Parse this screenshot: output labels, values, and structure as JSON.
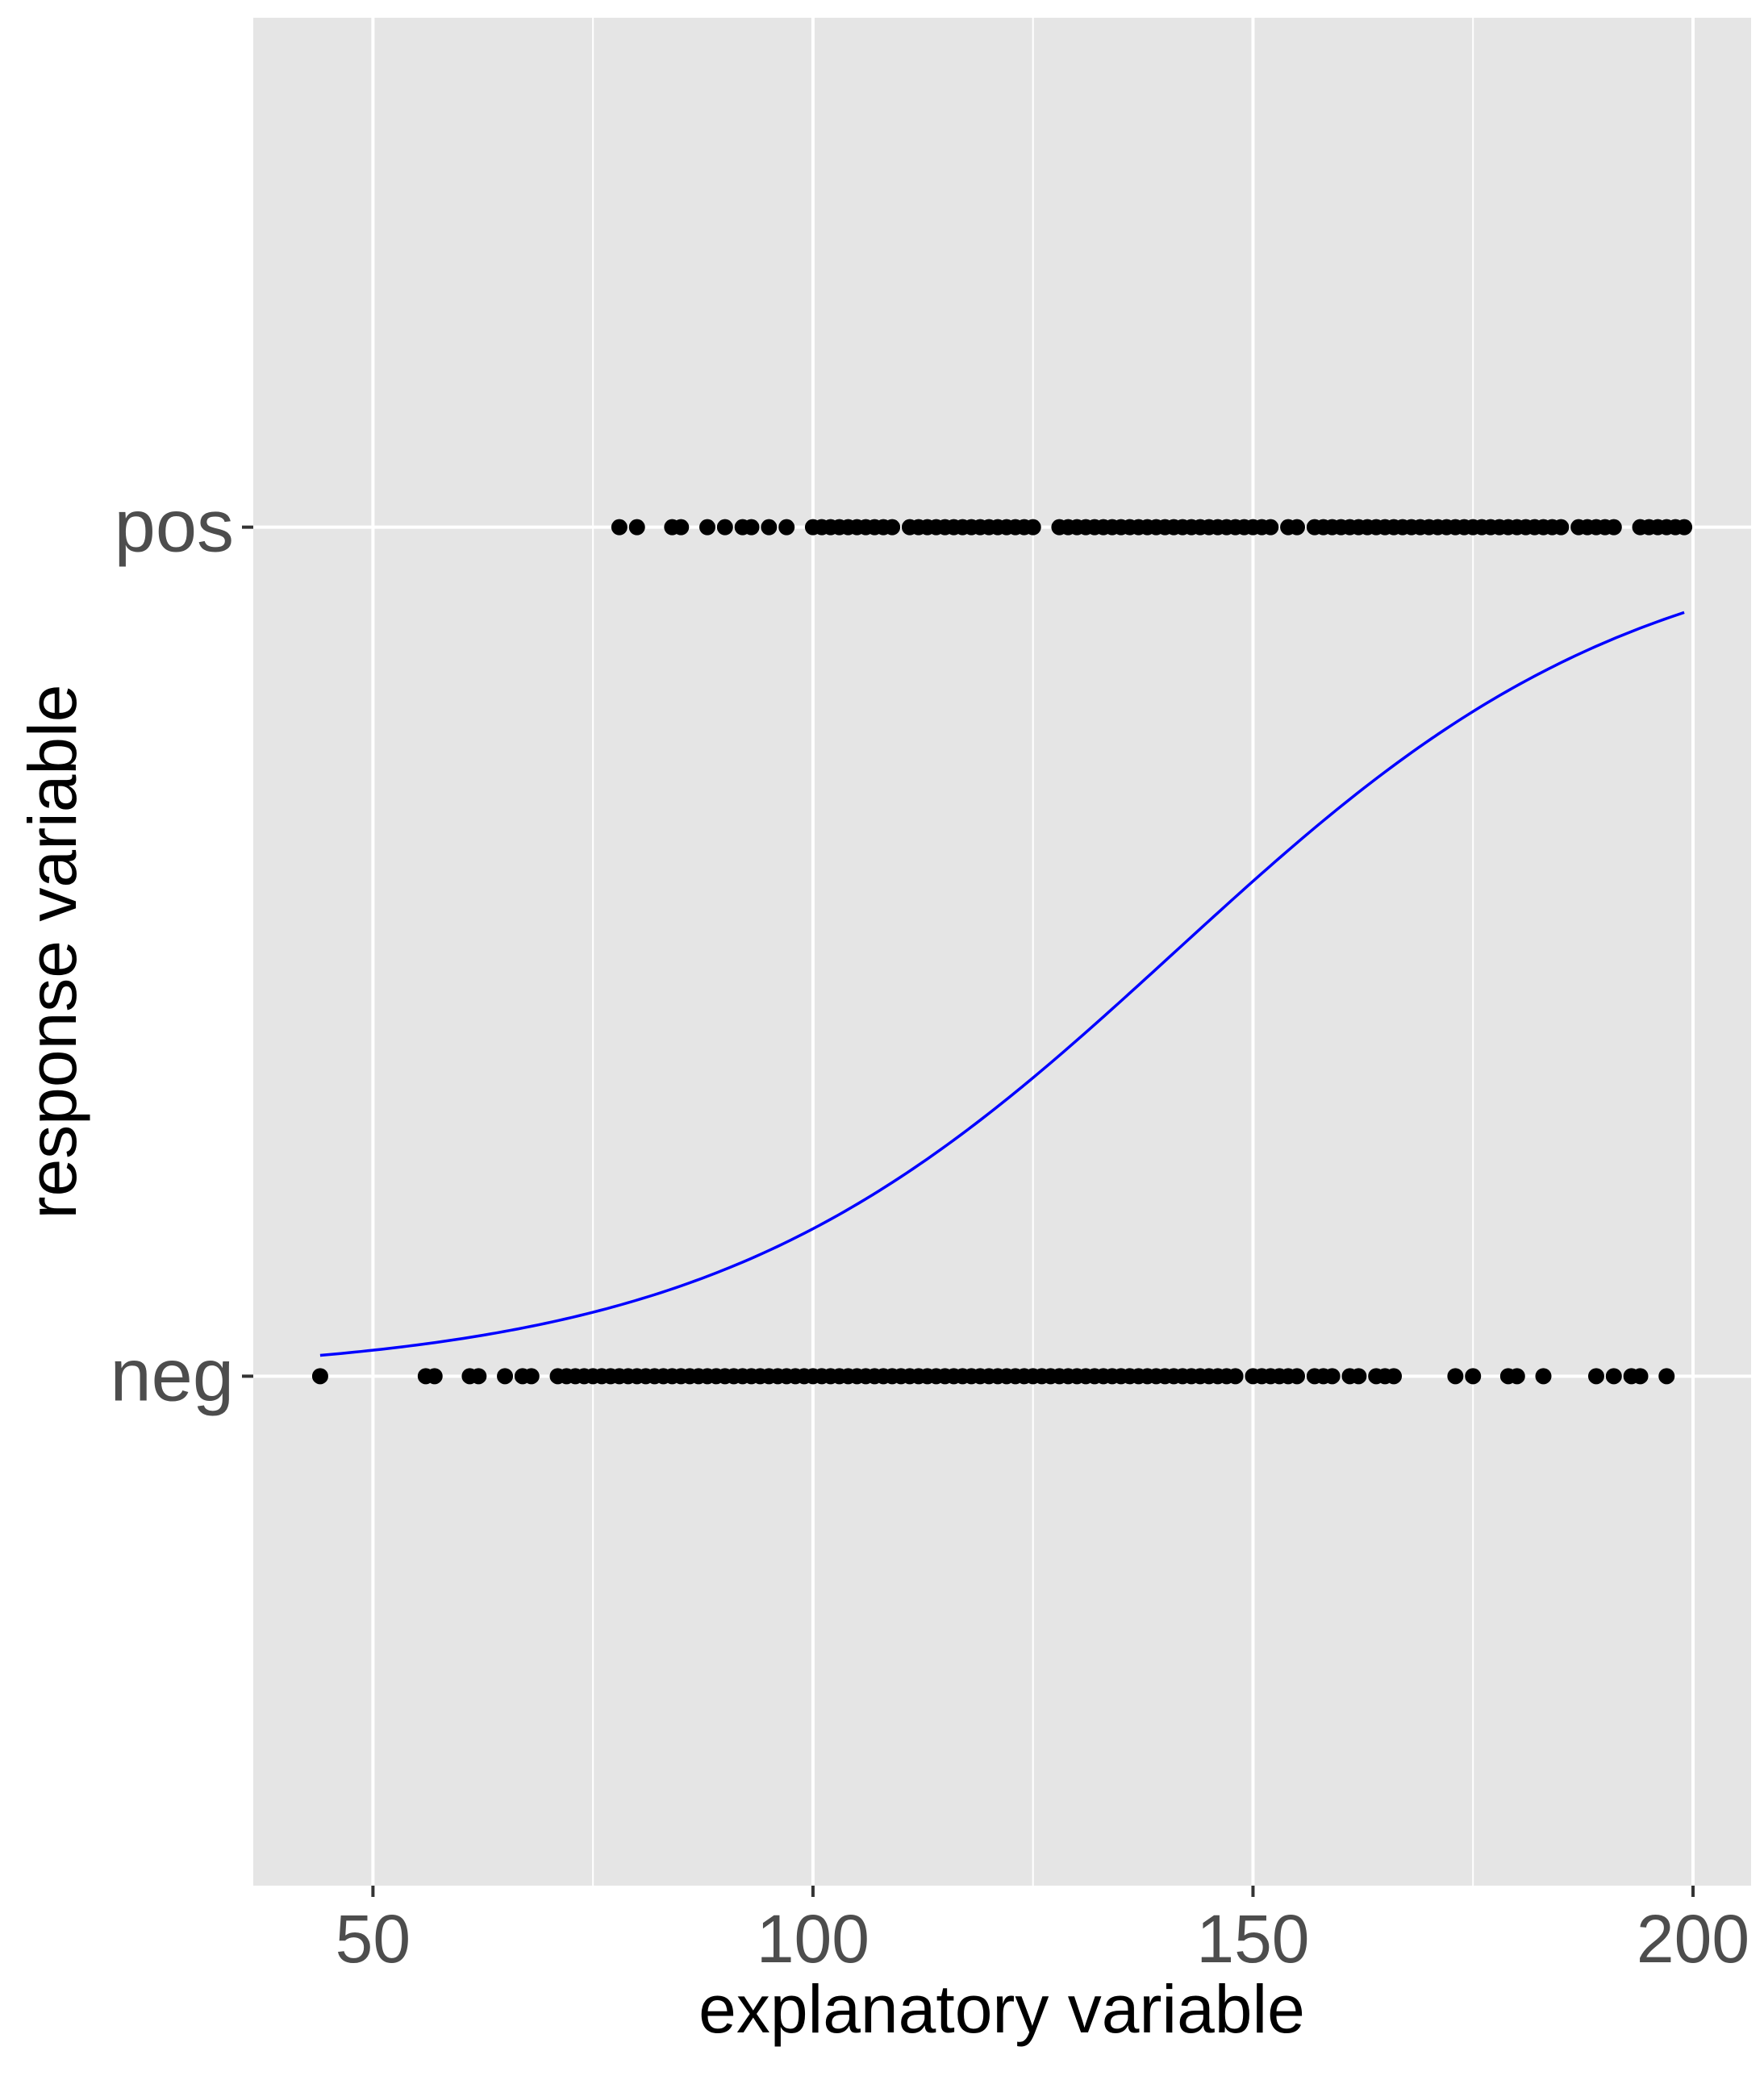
{
  "chart_data": {
    "type": "scatter",
    "title": "",
    "xlabel": "explanatory variable",
    "ylabel": "response variable",
    "xlim": [
      36.4,
      206.6
    ],
    "ylim": [
      -0.6,
      1.6
    ],
    "x_ticks": [
      50,
      100,
      150,
      200
    ],
    "x_minor_ticks": [
      75,
      125,
      175
    ],
    "y_categories": [
      "neg",
      "pos"
    ],
    "grid": true,
    "panel_background": "#e5e5e5",
    "grid_color": "#ffffff",
    "point_color": "#000000",
    "line_color": "#0000ff",
    "series": [
      {
        "kind": "points",
        "category": "pos",
        "x": [
          78,
          80,
          84,
          85,
          88,
          90,
          92,
          93,
          95,
          97,
          100,
          101,
          102,
          103,
          104,
          105,
          106,
          107,
          108,
          109,
          111,
          112,
          113,
          114,
          115,
          116,
          117,
          118,
          119,
          120,
          121,
          122,
          123,
          124,
          125,
          128,
          129,
          130,
          131,
          132,
          133,
          134,
          135,
          136,
          137,
          138,
          139,
          140,
          141,
          142,
          143,
          144,
          145,
          146,
          147,
          148,
          149,
          150,
          151,
          152,
          154,
          155,
          157,
          158,
          159,
          160,
          161,
          162,
          163,
          164,
          165,
          166,
          167,
          168,
          169,
          170,
          171,
          172,
          173,
          174,
          175,
          176,
          177,
          178,
          179,
          180,
          181,
          182,
          183,
          184,
          185,
          187,
          188,
          189,
          190,
          191,
          194,
          195,
          196,
          197,
          198,
          199
        ]
      },
      {
        "kind": "points",
        "category": "neg",
        "x": [
          44,
          56,
          57,
          61,
          62,
          65,
          67,
          68,
          71,
          72,
          73,
          74,
          75,
          76,
          77,
          78,
          79,
          80,
          81,
          82,
          83,
          84,
          85,
          86,
          87,
          88,
          89,
          90,
          91,
          92,
          93,
          94,
          95,
          96,
          97,
          98,
          99,
          100,
          101,
          102,
          103,
          104,
          105,
          106,
          107,
          108,
          109,
          110,
          111,
          112,
          113,
          114,
          115,
          116,
          117,
          118,
          119,
          120,
          121,
          122,
          123,
          124,
          125,
          126,
          127,
          128,
          129,
          130,
          131,
          132,
          133,
          134,
          135,
          136,
          137,
          138,
          139,
          140,
          141,
          142,
          143,
          144,
          145,
          146,
          147,
          148,
          150,
          151,
          152,
          153,
          154,
          155,
          157,
          158,
          159,
          161,
          162,
          164,
          165,
          166,
          173,
          175,
          179,
          180,
          183,
          189,
          191,
          193,
          194,
          197
        ]
      },
      {
        "kind": "logistic-curve",
        "x": [
          44,
          50,
          60,
          70,
          80,
          90,
          100,
          110,
          120,
          130,
          140,
          150,
          160,
          170,
          180,
          190,
          199
        ],
        "y": [
          0.019,
          0.025,
          0.039,
          0.062,
          0.097,
          0.147,
          0.217,
          0.308,
          0.418,
          0.539,
          0.658,
          0.762,
          0.843,
          0.9,
          0.938,
          0.962,
          0.911
        ]
      }
    ]
  }
}
